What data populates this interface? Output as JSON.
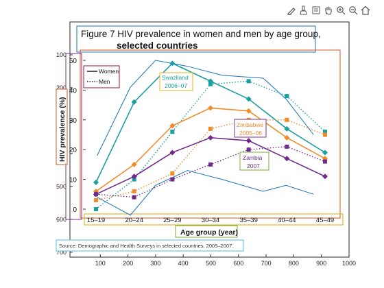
{
  "toolbar": {
    "buttons": [
      {
        "name": "edit-plot-icon"
      },
      {
        "name": "brush-icon"
      },
      {
        "name": "data-tips-icon"
      },
      {
        "name": "pan-hand-icon"
      },
      {
        "name": "zoom-in-icon"
      },
      {
        "name": "zoom-out-icon"
      },
      {
        "name": "home-icon"
      }
    ]
  },
  "figure": {
    "title_line1": "Figure 7  HIV prevalence in women and men by age group,",
    "title_line2": "selected countries",
    "legend_women": "Women",
    "legend_men": "Men",
    "ylabel": "HIV prevalence (%)",
    "xlabel": "Age group (year)",
    "source": "Source: Demographic and Health Surveys in selected countries, 2005–2007.",
    "labels": {
      "swaziland": [
        "Swaziland",
        "2006–07"
      ],
      "zimbabwe": [
        "Zimbabwe",
        "2005–06"
      ],
      "zambia": [
        "Zambia",
        "2007"
      ]
    }
  },
  "chart_data": {
    "type": "line",
    "title": "Figure 7  HIV prevalence in women and men by age group, selected countries",
    "xlabel": "Age group (year)",
    "ylabel": "HIV prevalence (%)",
    "categories": [
      "15–19",
      "20–24",
      "25–29",
      "30–34",
      "35–39",
      "40–44",
      "45–49"
    ],
    "ylim": [
      0,
      50
    ],
    "yticks": [
      0,
      10,
      20,
      30,
      40,
      50
    ],
    "series": [
      {
        "name": "Swaziland Women",
        "color": "#1a9fa0",
        "dash": false,
        "values": [
          9,
          36,
          49,
          43,
          37,
          27,
          19
        ]
      },
      {
        "name": "Swaziland Men",
        "color": "#1a9fa0",
        "dash": true,
        "values": [
          0,
          10,
          26,
          42,
          43,
          38,
          26
        ]
      },
      {
        "name": "Zimbabwe Women",
        "color": "#f08c28",
        "dash": false,
        "values": [
          6,
          15,
          28,
          34,
          33,
          24,
          17
        ]
      },
      {
        "name": "Zimbabwe Men",
        "color": "#f08c28",
        "dash": true,
        "values": [
          3,
          6,
          12,
          27,
          30,
          30,
          25
        ]
      },
      {
        "name": "Zambia Women",
        "color": "#6f2a8a",
        "dash": false,
        "values": [
          5,
          11,
          19,
          24,
          23,
          17,
          11
        ]
      },
      {
        "name": "Zambia Men",
        "color": "#6f2a8a",
        "dash": true,
        "values": [
          5,
          4,
          10,
          15,
          20,
          21,
          16
        ]
      }
    ],
    "envelope": {
      "color": "#1a72b8",
      "upper": [
        [
          0.5,
          18
        ],
        [
          15,
          41
        ],
        [
          26,
          50
        ],
        [
          40,
          48
        ],
        [
          55,
          45
        ],
        [
          73,
          44
        ],
        [
          83,
          37
        ],
        [
          95,
          25
        ]
      ],
      "lower": [
        [
          0.5,
          4
        ],
        [
          15,
          -2
        ],
        [
          26,
          8
        ],
        [
          40,
          13
        ],
        [
          55,
          10
        ],
        [
          73,
          6
        ],
        [
          83,
          8
        ],
        [
          95,
          5
        ]
      ]
    }
  },
  "axes": {
    "xticks": [
      "100",
      "200",
      "300",
      "400",
      "500",
      "600",
      "700",
      "800",
      "900",
      "1000"
    ],
    "yticks": [
      "100",
      "200",
      "300",
      "400",
      "500",
      "600",
      "700"
    ]
  }
}
